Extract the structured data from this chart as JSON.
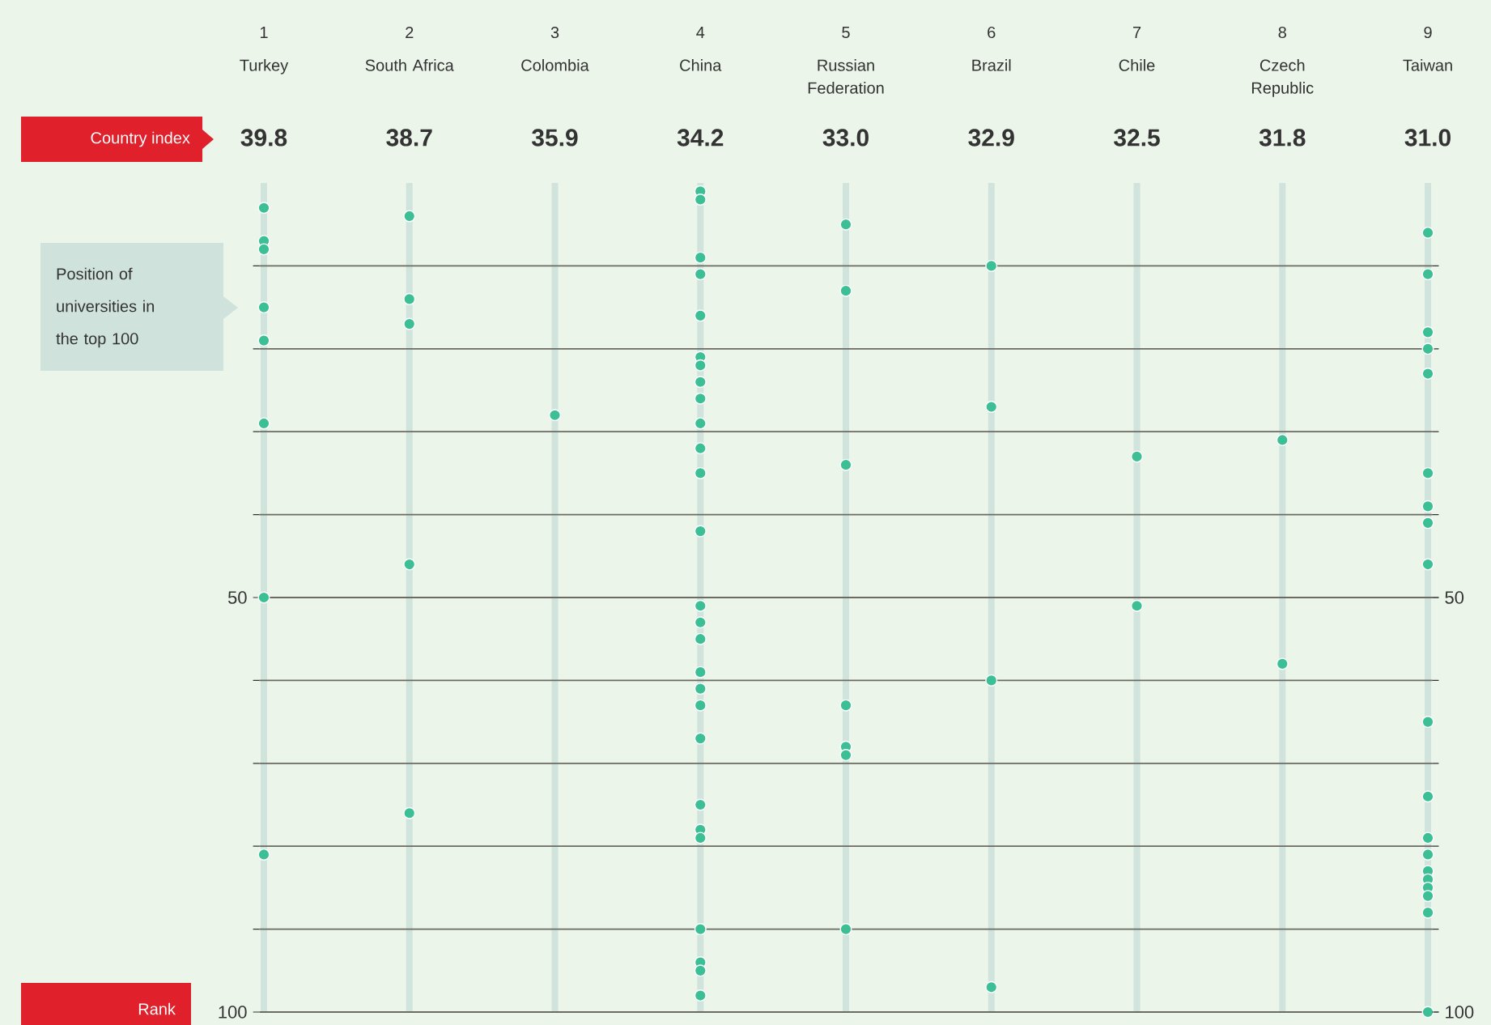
{
  "chart_data": {
    "type": "scatter",
    "categories": [
      "Turkey",
      "South Africa",
      "Colombia",
      "China",
      "Russian Federation",
      "Brazil",
      "Chile",
      "Czech Republic",
      "Taiwan"
    ],
    "series": [
      {
        "color": "#3dbf96",
        "x": [
          "Turkey",
          "Turkey",
          "Turkey",
          "Turkey",
          "Turkey",
          "Turkey",
          "Turkey",
          "Turkey",
          "South Africa",
          "South Africa",
          "South Africa",
          "South Africa",
          "South Africa",
          "Colombia",
          "China",
          "China",
          "China",
          "China",
          "China",
          "China",
          "China",
          "China",
          "China",
          "China",
          "China",
          "China",
          "China",
          "China",
          "China",
          "China",
          "China",
          "China",
          "China",
          "China",
          "China",
          "China",
          "China",
          "China",
          "China",
          "China",
          "China",
          "Russian Federation",
          "Russian Federation",
          "Russian Federation",
          "Russian Federation",
          "Russian Federation",
          "Russian Federation",
          "Russian Federation",
          "Brazil",
          "Brazil",
          "Brazil",
          "Brazil",
          "Chile",
          "Chile",
          "Czech Republic",
          "Czech Republic",
          "Taiwan",
          "Taiwan",
          "Taiwan",
          "Taiwan",
          "Taiwan",
          "Taiwan",
          "Taiwan",
          "Taiwan",
          "Taiwan",
          "Taiwan",
          "Taiwan",
          "Taiwan",
          "Taiwan",
          "Taiwan",
          "Taiwan",
          "Taiwan",
          "Taiwan",
          "Taiwan",
          "Taiwan"
        ],
        "values": [
          3,
          7,
          8,
          15,
          19,
          29,
          50,
          81,
          4,
          14,
          17,
          46,
          76,
          28,
          1,
          2,
          9,
          11,
          16,
          21,
          22,
          24,
          26,
          29,
          32,
          35,
          42,
          51,
          53,
          55,
          59,
          61,
          63,
          67,
          75,
          78,
          79,
          90,
          94,
          95,
          98,
          5,
          13,
          34,
          63,
          68,
          69,
          90,
          10,
          27,
          60,
          97,
          33,
          51,
          31,
          58,
          6,
          11,
          18,
          20,
          23,
          35,
          39,
          41,
          46,
          65,
          74,
          79,
          81,
          83,
          84,
          85,
          86,
          88,
          100
        ]
      }
    ],
    "ylim": [
      100,
      0
    ],
    "yticks": [
      {
        "value": 10,
        "label": null
      },
      {
        "value": 20,
        "label": null
      },
      {
        "value": 30,
        "label": null
      },
      {
        "value": 40,
        "label": null
      },
      50,
      {
        "value": 60,
        "label": null
      },
      {
        "value": 70,
        "label": null
      },
      {
        "value": 80,
        "label": null
      },
      {
        "value": 90,
        "label": null
      },
      100
    ],
    "y2lim": [
      100,
      0
    ],
    "y2ticks": [
      50,
      100
    ],
    "ylabel": "Rank",
    "grid": true,
    "marker": "circle",
    "annotations": [
      "Country index",
      "Position of universities in the top 100",
      "1",
      "2",
      "3",
      "4",
      "5",
      "6",
      "7",
      "8",
      "9",
      "39.8",
      "38.7",
      "35.9",
      "34.2",
      "33.0",
      "32.9",
      "32.5",
      "31.8",
      "31.0"
    ]
  }
}
